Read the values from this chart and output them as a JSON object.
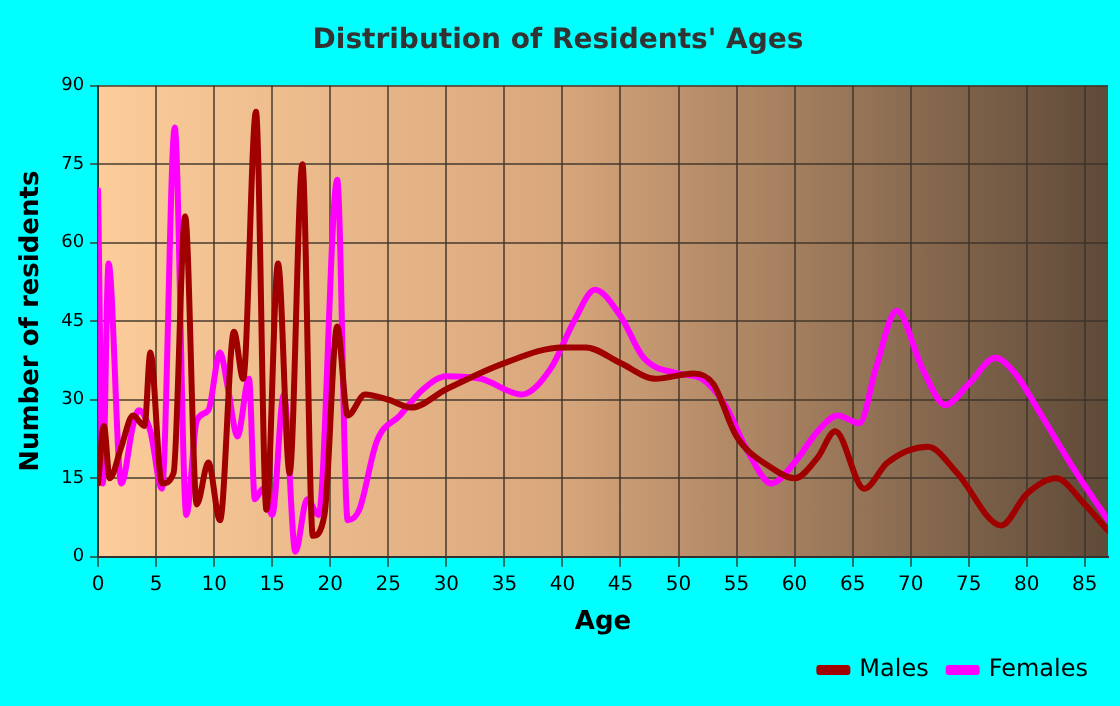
{
  "chart_data": {
    "type": "line",
    "title": "Distribution of Residents' Ages",
    "xlabel": "Age",
    "ylabel": "Number of residents",
    "xlim": [
      0,
      87
    ],
    "xticks": [
      0,
      5,
      10,
      15,
      20,
      25,
      30,
      35,
      40,
      45,
      50,
      55,
      60,
      65,
      70,
      75,
      80,
      85
    ],
    "ylim": [
      0,
      90
    ],
    "yticks": [
      0,
      15,
      30,
      45,
      60,
      75,
      90
    ],
    "grid": true,
    "legend": "bottom right",
    "marker": "none",
    "series": [
      {
        "name": "Males",
        "color": "#a00000",
        "x": [
          0,
          0.5,
          1,
          2,
          3,
          4,
          4.5,
          5.5,
          6.5,
          7.5,
          8.5,
          9.5,
          10.5,
          11.7,
          12.5,
          13.6,
          14.5,
          15.5,
          16.5,
          17.6,
          18.5,
          19.5,
          20.6,
          21.5,
          23,
          25,
          27,
          30,
          35,
          40,
          42,
          45,
          48,
          51.3,
          53,
          55,
          58,
          60,
          62,
          63.5,
          66,
          68,
          71.5,
          74,
          77.8,
          80,
          82.5,
          85,
          87
        ],
        "values": [
          14,
          25,
          15,
          21,
          27,
          25,
          39,
          14,
          16,
          65,
          10,
          18,
          7,
          43,
          34,
          85,
          9,
          56,
          16,
          75,
          4,
          8,
          44,
          27,
          31,
          30,
          28.5,
          32,
          37,
          40,
          40,
          37,
          34,
          35,
          33,
          23,
          17,
          15,
          19,
          24,
          13,
          18,
          21,
          16,
          6,
          12,
          15,
          10,
          5
        ]
      },
      {
        "name": "Females",
        "color": "#ff00ff",
        "x": [
          0,
          0.4,
          0.9,
          2,
          3,
          3.5,
          4.5,
          5.5,
          6.6,
          7.6,
          8.5,
          9.5,
          10.5,
          11.2,
          12,
          13,
          13.5,
          14.2,
          15,
          16,
          17,
          18,
          19,
          20.6,
          21.5,
          22.5,
          24,
          26,
          28,
          30,
          33,
          36.5,
          39,
          41,
          42.8,
          45,
          47,
          50,
          52,
          54,
          56,
          58,
          60,
          62,
          63.7,
          65.6,
          67,
          68.8,
          71,
          73,
          75,
          77.3,
          79,
          81,
          84,
          87
        ],
        "values": [
          70,
          14,
          56,
          14,
          25,
          28,
          24,
          13,
          82,
          8,
          26,
          28,
          39,
          32,
          23,
          34,
          11,
          13,
          8,
          31,
          1,
          11,
          8,
          72,
          7,
          9,
          22,
          27,
          32,
          34.5,
          34,
          31,
          36,
          45,
          51,
          46,
          38,
          35,
          34,
          29,
          20,
          14,
          18,
          24,
          27,
          25.5,
          36,
          47,
          36,
          29,
          33,
          38,
          35,
          28,
          17,
          7
        ]
      }
    ]
  }
}
